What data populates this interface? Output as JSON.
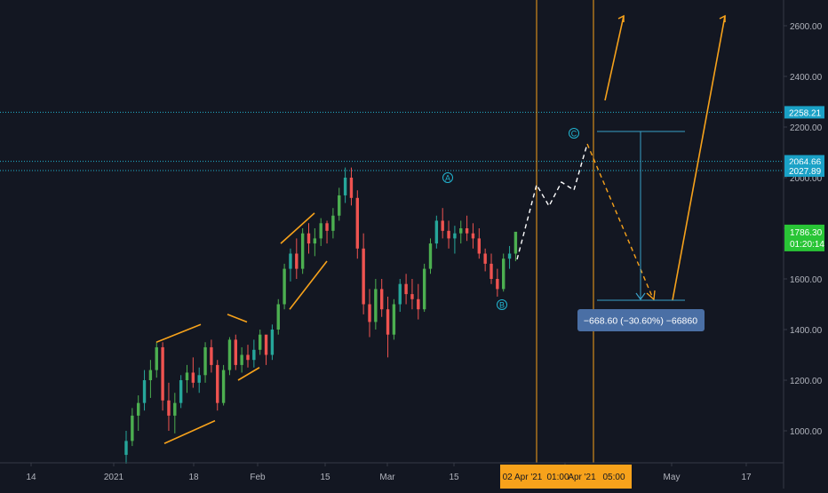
{
  "colors": {
    "background": "#131722",
    "up_candle": "#26a69a",
    "up_candle_alt": "#4caf50",
    "down_candle": "#ef5350",
    "axis_text": "#b2b5be",
    "axis_line": "#363a45",
    "horizontal_level": "#22b5d1",
    "vertical_line": "#f7a21b",
    "pattern_lines": "#f7a21b",
    "projection_path": "#ffffff",
    "projection_down": "#f7a21b",
    "measure_line": "#3aa0c8",
    "measure_label_bg": "#4a6fa5",
    "price_label_bg": "#1aa1c6",
    "current_price_bg": "#29c536",
    "time_label_bg": "#f7a21b",
    "wave_label": "#22b5d1"
  },
  "chart_data": {
    "type": "candlestick",
    "title": "",
    "xlabel": "",
    "ylabel": "",
    "x_ticks": [
      "14",
      "2021",
      "18",
      "Feb",
      "15",
      "Mar",
      "15",
      "Apr",
      "May",
      "17"
    ],
    "time_axis_labels": [
      "02 Apr '21",
      "01:00",
      "Apr '21",
      "05:00"
    ],
    "y_ticks": [
      1000,
      1200,
      1400,
      1600,
      1800,
      2000,
      2200,
      2400,
      2600
    ],
    "y_tick_labels": [
      "1000.00",
      "1200.00",
      "1400.00",
      "1600.00",
      "1800.00",
      "2000.00",
      "2200.00",
      "2400.00",
      "2600.00"
    ],
    "ylim": [
      870,
      2720
    ],
    "log_scale": false,
    "grid": false,
    "horizontal_levels": [
      {
        "value": 2258.21,
        "label": "2258.21"
      },
      {
        "value": 2064.66,
        "label": "2064.66"
      },
      {
        "value": 2027.89,
        "label": "2027.89"
      }
    ],
    "current_price": {
      "value": 1786.3,
      "label": "1786.30",
      "countdown": "01:20:14"
    },
    "vertical_lines": [
      "02 Apr '21",
      "Apr '21"
    ],
    "wave_labels": [
      {
        "label": "A",
        "price": 2030
      },
      {
        "label": "B",
        "price": 1500
      },
      {
        "label": "C",
        "price": 2200
      }
    ],
    "measure": {
      "change": -668.6,
      "percent": -30.6,
      "ticks": -66860,
      "label": "−668.60 (−30.60%) −66860"
    },
    "ohlc_daily_approx": [
      [
        905,
        1000,
        870,
        960
      ],
      [
        960,
        1090,
        940,
        1060
      ],
      [
        1060,
        1140,
        1000,
        1110
      ],
      [
        1110,
        1240,
        1080,
        1200
      ],
      [
        1200,
        1280,
        1130,
        1240
      ],
      [
        1240,
        1350,
        1210,
        1330
      ],
      [
        1330,
        1350,
        1080,
        1120
      ],
      [
        1120,
        1190,
        1000,
        1060
      ],
      [
        1060,
        1150,
        990,
        1110
      ],
      [
        1110,
        1220,
        1090,
        1200
      ],
      [
        1200,
        1260,
        1150,
        1230
      ],
      [
        1230,
        1290,
        1170,
        1190
      ],
      [
        1190,
        1250,
        1150,
        1220
      ],
      [
        1220,
        1350,
        1190,
        1330
      ],
      [
        1330,
        1360,
        1230,
        1260
      ],
      [
        1260,
        1280,
        1080,
        1110
      ],
      [
        1110,
        1260,
        1100,
        1240
      ],
      [
        1240,
        1370,
        1220,
        1360
      ],
      [
        1360,
        1380,
        1240,
        1260
      ],
      [
        1260,
        1330,
        1230,
        1300
      ],
      [
        1300,
        1340,
        1250,
        1280
      ],
      [
        1280,
        1360,
        1250,
        1320
      ],
      [
        1320,
        1400,
        1300,
        1380
      ],
      [
        1380,
        1340,
        1260,
        1300
      ],
      [
        1300,
        1420,
        1280,
        1400
      ],
      [
        1400,
        1520,
        1380,
        1500
      ],
      [
        1500,
        1660,
        1480,
        1640
      ],
      [
        1640,
        1720,
        1590,
        1700
      ],
      [
        1700,
        1760,
        1600,
        1640
      ],
      [
        1640,
        1800,
        1620,
        1780
      ],
      [
        1780,
        1820,
        1700,
        1740
      ],
      [
        1740,
        1800,
        1690,
        1760
      ],
      [
        1760,
        1840,
        1730,
        1820
      ],
      [
        1820,
        1830,
        1740,
        1790
      ],
      [
        1790,
        1880,
        1760,
        1850
      ],
      [
        1850,
        1960,
        1830,
        1930
      ],
      [
        1930,
        2040,
        1900,
        2000
      ],
      [
        2000,
        2040,
        1890,
        1920
      ],
      [
        1920,
        1950,
        1680,
        1720
      ],
      [
        1720,
        1780,
        1460,
        1500
      ],
      [
        1500,
        1560,
        1370,
        1430
      ],
      [
        1430,
        1600,
        1400,
        1560
      ],
      [
        1560,
        1600,
        1450,
        1480
      ],
      [
        1480,
        1530,
        1290,
        1380
      ],
      [
        1380,
        1520,
        1360,
        1500
      ],
      [
        1500,
        1600,
        1470,
        1580
      ],
      [
        1580,
        1620,
        1500,
        1540
      ],
      [
        1540,
        1600,
        1480,
        1520
      ],
      [
        1520,
        1580,
        1440,
        1480
      ],
      [
        1480,
        1660,
        1470,
        1640
      ],
      [
        1640,
        1760,
        1620,
        1740
      ],
      [
        1740,
        1850,
        1720,
        1830
      ],
      [
        1830,
        1880,
        1760,
        1790
      ],
      [
        1790,
        1830,
        1720,
        1760
      ],
      [
        1760,
        1810,
        1700,
        1780
      ],
      [
        1780,
        1830,
        1740,
        1800
      ],
      [
        1800,
        1850,
        1750,
        1780
      ],
      [
        1780,
        1820,
        1720,
        1760
      ],
      [
        1760,
        1800,
        1680,
        1700
      ],
      [
        1700,
        1720,
        1630,
        1660
      ],
      [
        1660,
        1700,
        1580,
        1600
      ],
      [
        1600,
        1640,
        1530,
        1560
      ],
      [
        1560,
        1700,
        1550,
        1680
      ],
      [
        1680,
        1730,
        1640,
        1700
      ],
      [
        1700,
        1770,
        1670,
        1786.3
      ]
    ]
  }
}
